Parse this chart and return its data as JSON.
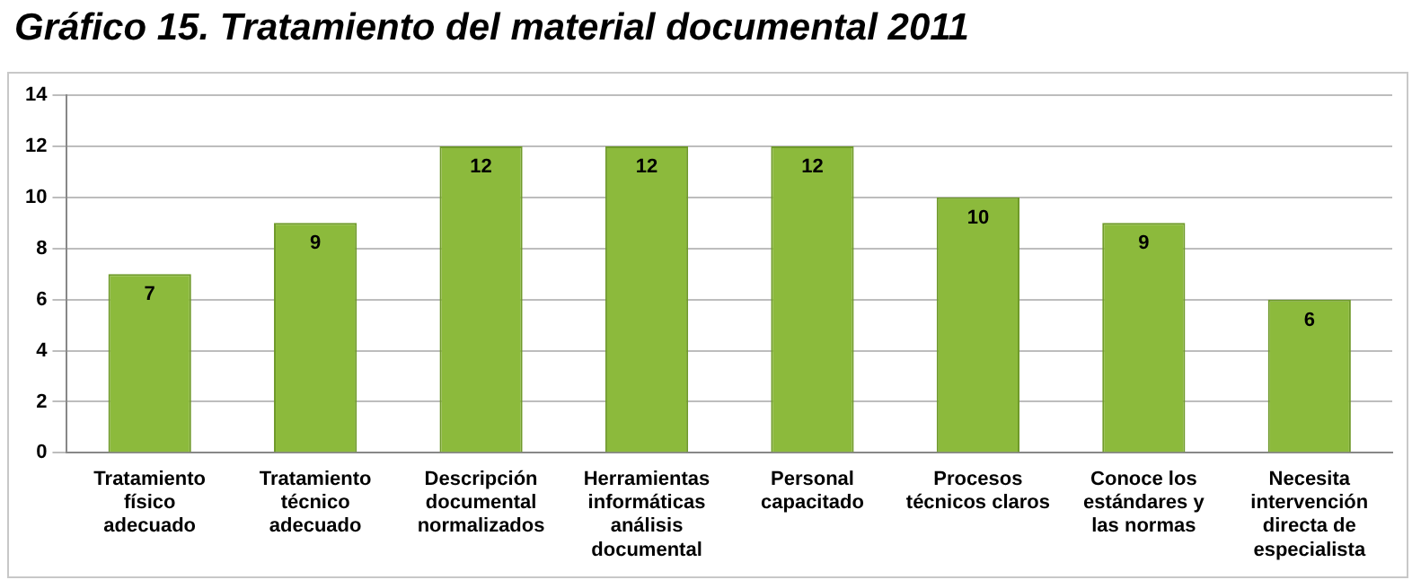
{
  "chart_data": {
    "type": "bar",
    "title": "Gráfico 15. Tratamiento del material documental 2011",
    "categories": [
      "Tratamiento físico adecuado",
      "Tratamiento técnico adecuado",
      "Descripción documental normalizados",
      "Herramientas informáticas análisis documental",
      "Personal capacitado",
      "Procesos técnicos claros",
      "Conoce los estándares y las normas",
      "Necesita intervención directa de especialista"
    ],
    "values": [
      7,
      9,
      12,
      12,
      12,
      10,
      9,
      6
    ],
    "color": "#8cba3c",
    "ylim": [
      0,
      14
    ],
    "yticks": [
      0,
      2,
      4,
      6,
      8,
      10,
      12,
      14
    ],
    "grid": "y",
    "legend": false,
    "data_labels": true
  }
}
